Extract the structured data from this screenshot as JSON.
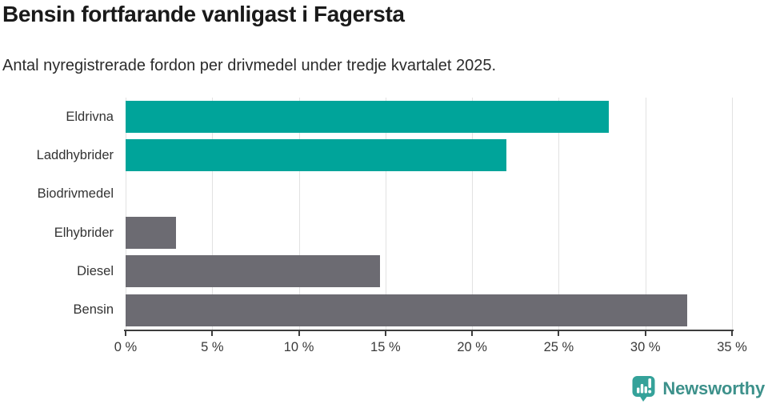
{
  "chart_data": {
    "type": "bar",
    "orientation": "horizontal",
    "title": "Bensin fortfarande vanligast i Fagersta",
    "subtitle": "Antal nyregistrerade fordon per drivmedel under tredje kvartalet 2025.",
    "categories": [
      "Eldrivna",
      "Laddhybrider",
      "Biodrivmedel",
      "Elhybrider",
      "Diesel",
      "Bensin"
    ],
    "values": [
      27.9,
      22,
      0,
      2.9,
      14.7,
      32.4
    ],
    "bar_colors": [
      "#00a49a",
      "#00a49a",
      "#6c6b72",
      "#6c6b72",
      "#6c6b72",
      "#6c6b72"
    ],
    "xlabel": "",
    "ylabel": "",
    "xlim": [
      0,
      35
    ],
    "x_tick_values": [
      0,
      5,
      10,
      15,
      20,
      25,
      30,
      35
    ],
    "x_ticks": [
      "0 %",
      "5 %",
      "10 %",
      "15 %",
      "20 %",
      "25 %",
      "30 %",
      "35 %"
    ],
    "grid": true,
    "legend": false,
    "colors": {
      "accent_teal": "#00a49a",
      "neutral_gray": "#6c6b72",
      "gridline": "#e2e2e2",
      "axis": "#3d3d3d"
    }
  },
  "footer": {
    "brand": "Newsworthy",
    "brand_color": "#3d918b",
    "icon": "newsworthy-speech-bubble-chart-icon",
    "icon_color": "#35a29a"
  }
}
